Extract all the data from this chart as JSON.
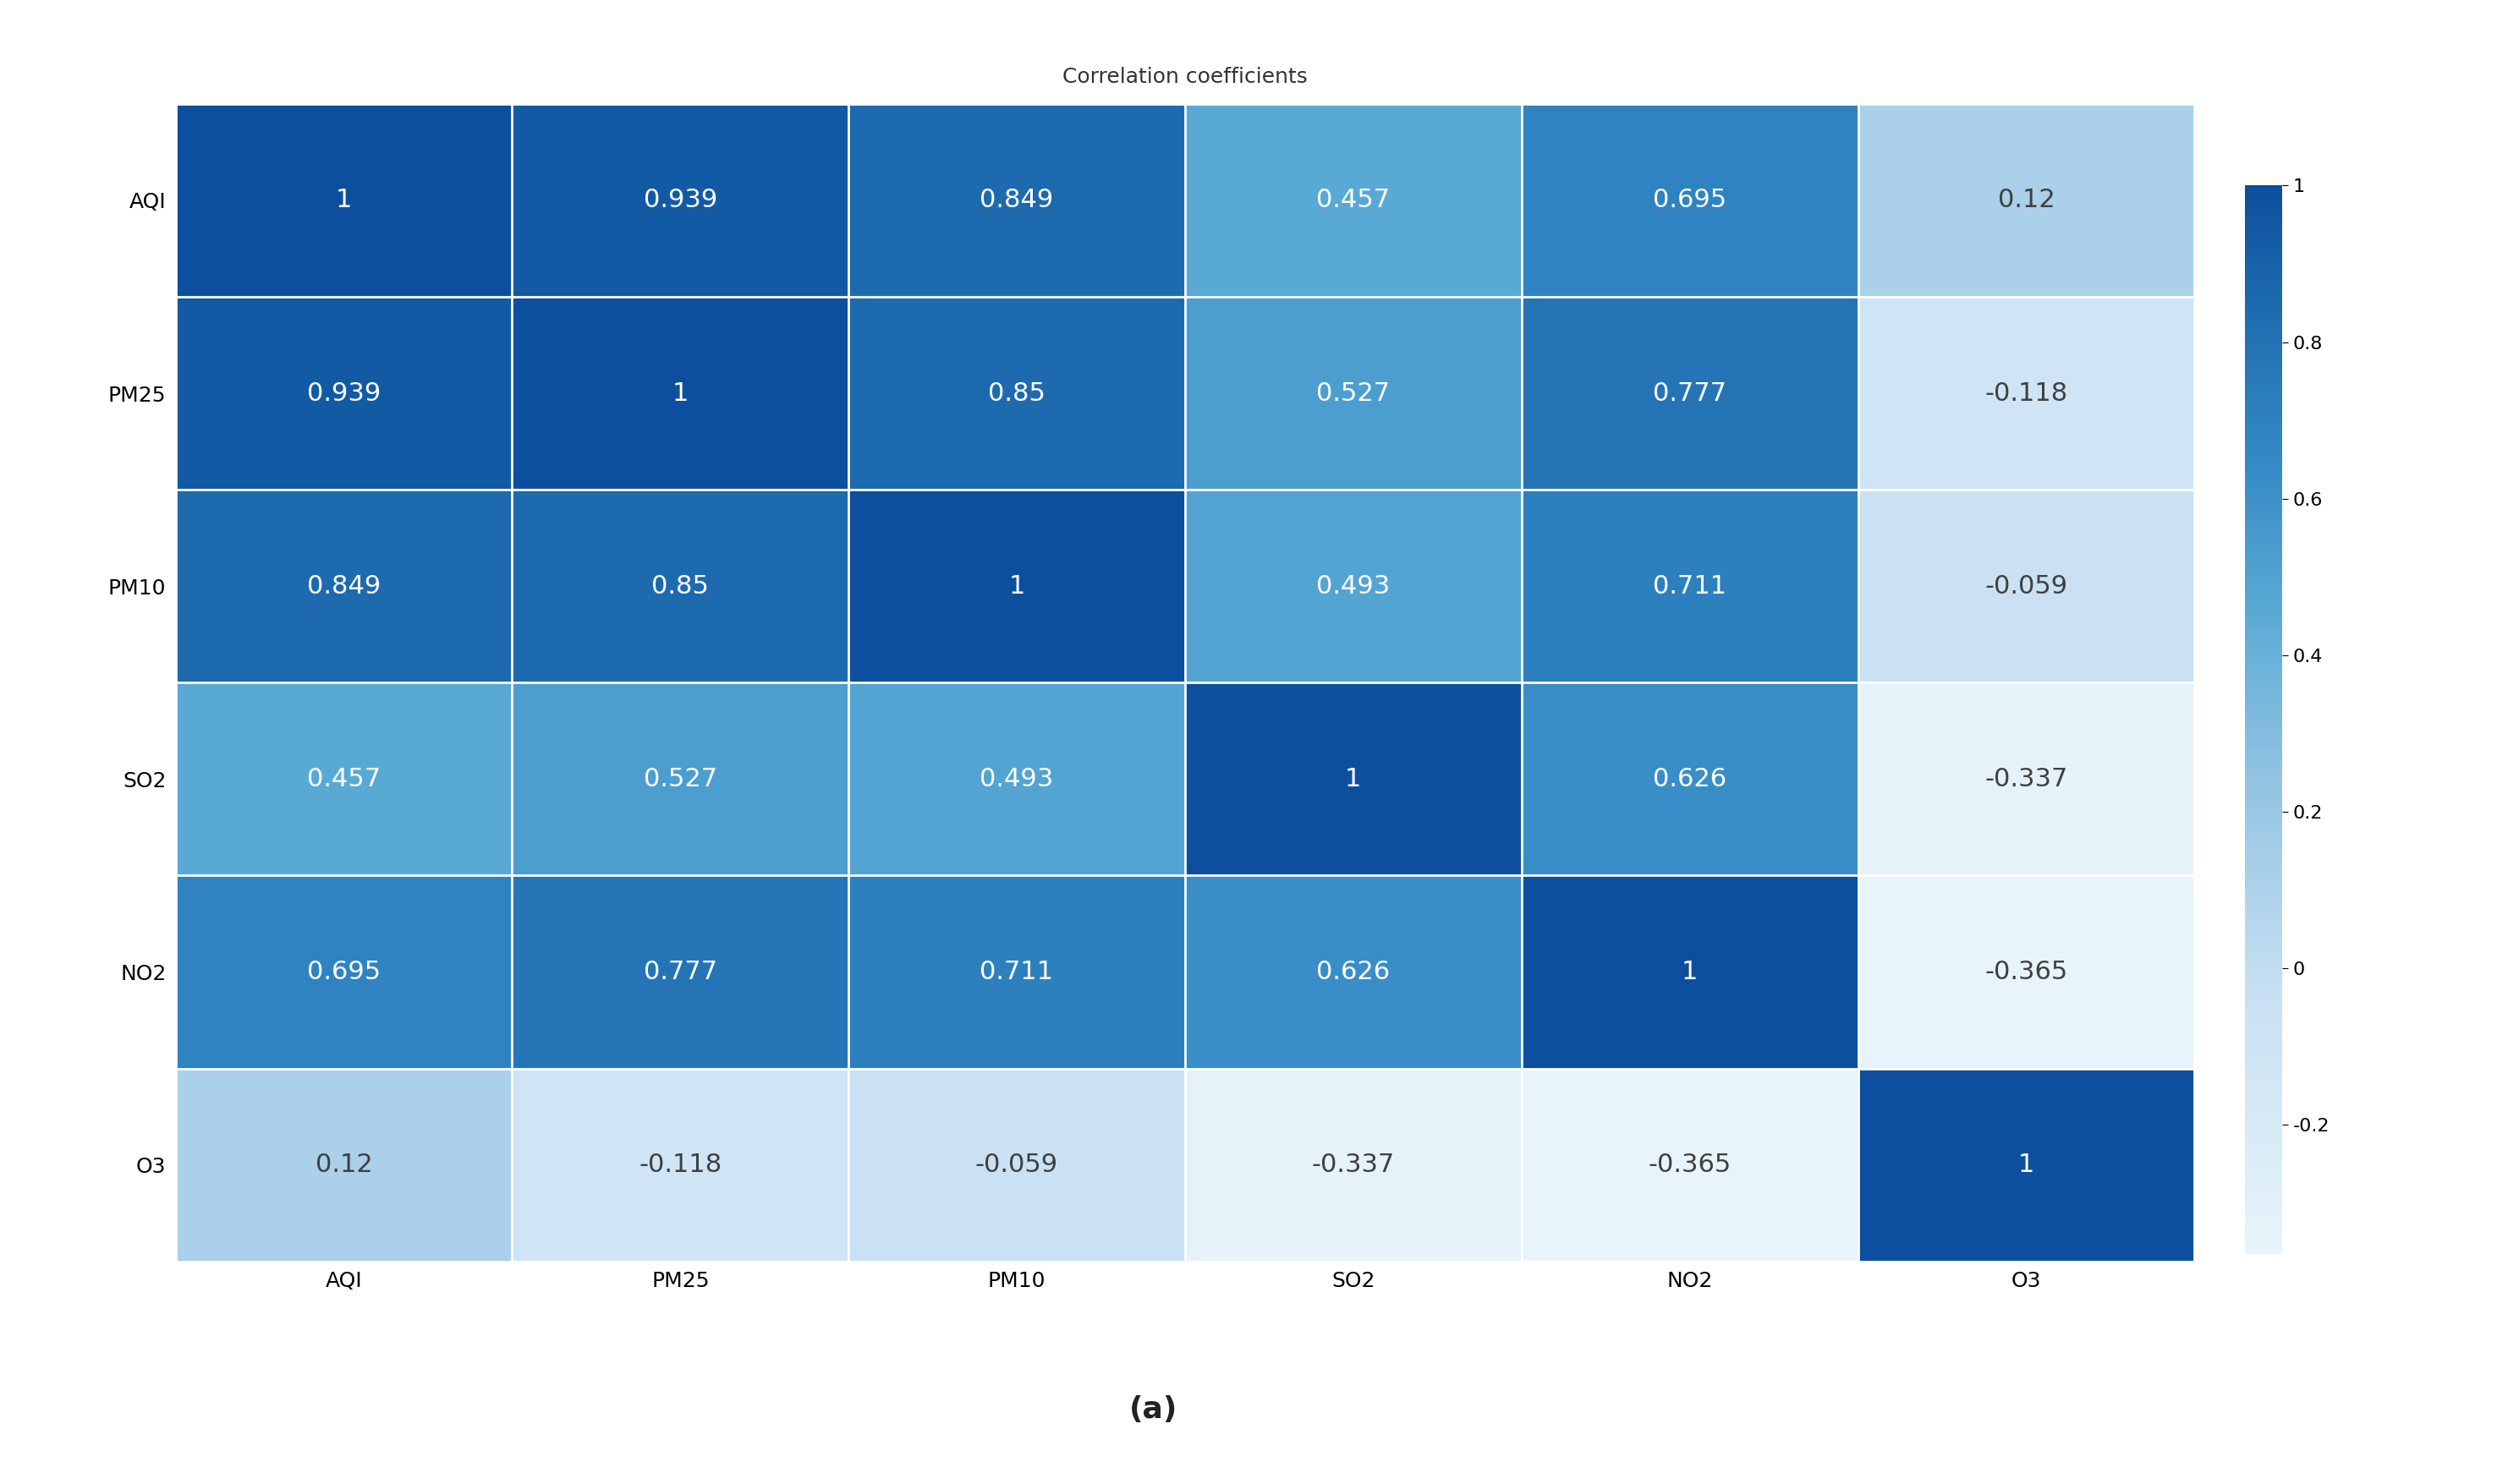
{
  "labels": [
    "AQI",
    "PM25",
    "PM10",
    "SO2",
    "NO2",
    "O3"
  ],
  "matrix": [
    [
      1.0,
      0.939,
      0.849,
      0.457,
      0.695,
      0.12
    ],
    [
      0.939,
      1.0,
      0.85,
      0.527,
      0.777,
      -0.118
    ],
    [
      0.849,
      0.85,
      1.0,
      0.493,
      0.711,
      -0.059
    ],
    [
      0.457,
      0.527,
      0.493,
      1.0,
      0.626,
      -0.337
    ],
    [
      0.695,
      0.777,
      0.711,
      0.626,
      1.0,
      -0.365
    ],
    [
      0.12,
      -0.118,
      -0.059,
      -0.337,
      -0.365,
      1.0
    ]
  ],
  "title": "Correlation coefficients",
  "subtitle": "(a)",
  "vmin": -0.365,
  "vmax": 1.0,
  "colorbar_ticks": [
    1,
    0.8,
    0.6,
    0.4,
    0.2,
    0,
    -0.2
  ],
  "text_color_light": "#ffffff",
  "text_color_dark": "#404040",
  "title_fontsize": 18,
  "label_fontsize": 18,
  "value_fontsize": 22,
  "subtitle_fontsize": 26,
  "colorbar_label_fontsize": 16,
  "background_color": "#ffffff",
  "brightness_threshold": 0.6
}
